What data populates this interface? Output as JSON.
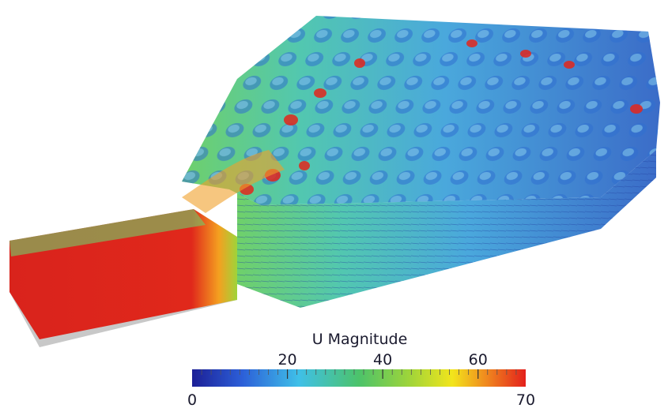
{
  "colorbar": {
    "title": "U Magnitude",
    "min": 0,
    "max": 70,
    "ticks": [
      20,
      40,
      60
    ]
  }
}
